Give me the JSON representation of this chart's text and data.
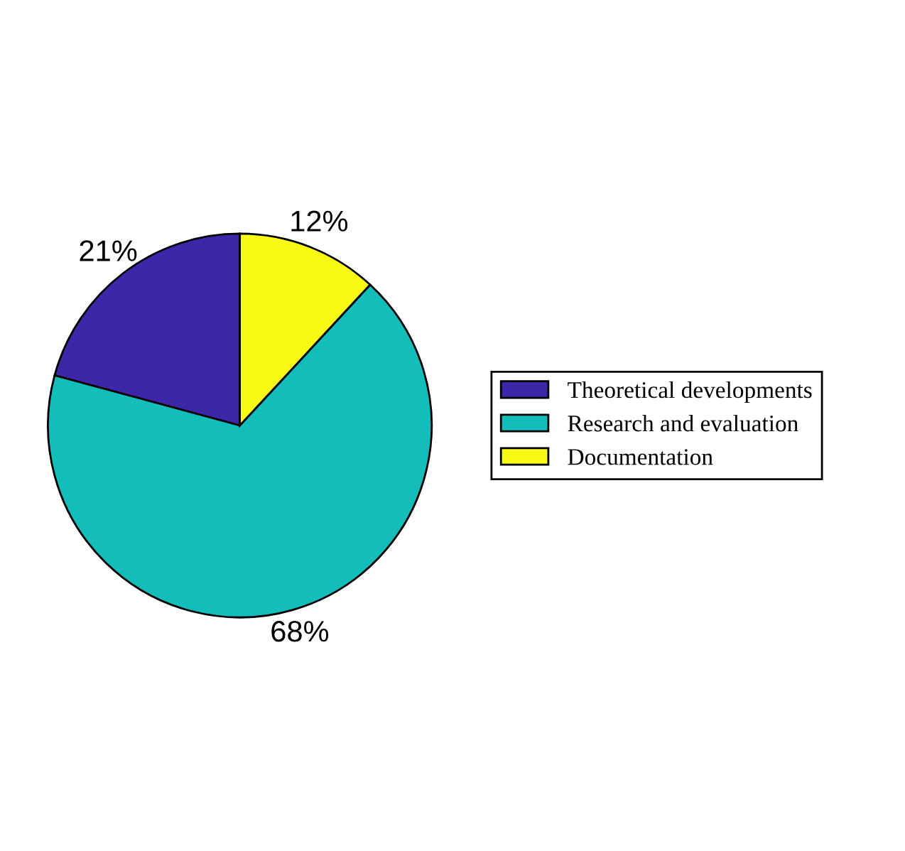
{
  "chart_data": {
    "type": "pie",
    "categories": [
      "Theoretical developments",
      "Research and evaluation",
      "Documentation"
    ],
    "values": [
      21,
      68,
      12
    ],
    "value_labels": [
      "21%",
      "68%",
      "12%"
    ],
    "colors": [
      "#3e26a8",
      "#13bdb9",
      "#f9fa14"
    ],
    "legend": "right"
  }
}
